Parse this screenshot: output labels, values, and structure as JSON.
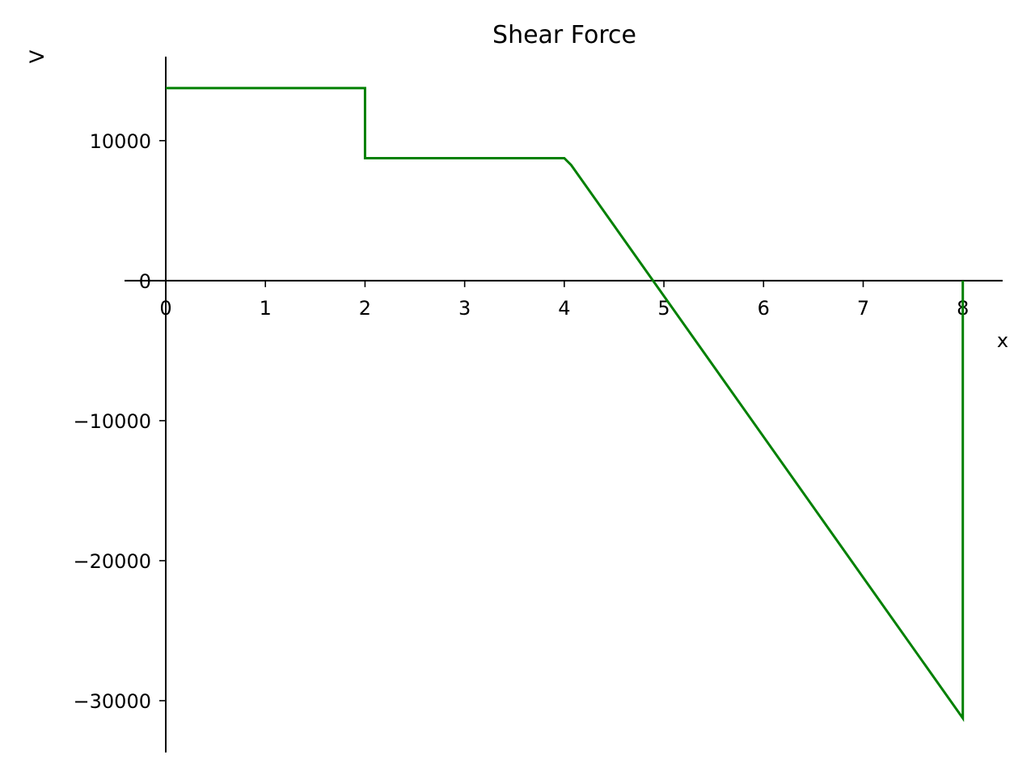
{
  "chart_data": {
    "type": "line",
    "title": "Shear Force",
    "xlabel": "x",
    "ylabel": "V",
    "xlim": [
      0,
      8.4
    ],
    "ylim": [
      -33700,
      16000
    ],
    "x_ticks": [
      {
        "value": 0,
        "label": "0"
      },
      {
        "value": 1,
        "label": "1"
      },
      {
        "value": 2,
        "label": "2"
      },
      {
        "value": 3,
        "label": "3"
      },
      {
        "value": 4,
        "label": "4"
      },
      {
        "value": 5,
        "label": "5"
      },
      {
        "value": 6,
        "label": "6"
      },
      {
        "value": 7,
        "label": "7"
      },
      {
        "value": 8,
        "label": "8"
      }
    ],
    "y_ticks": [
      {
        "value": 10000,
        "label": "10000"
      },
      {
        "value": 0,
        "label": "0"
      },
      {
        "value": -10000,
        "label": "−10000"
      },
      {
        "value": -20000,
        "label": "−20000"
      },
      {
        "value": -30000,
        "label": "−30000"
      }
    ],
    "grid": false,
    "series": [
      {
        "color": "#008000",
        "x": [
          0,
          2,
          2,
          4,
          4.07,
          8,
          8
        ],
        "y": [
          13750,
          13750,
          8750,
          8750,
          8250,
          -31250,
          0
        ]
      }
    ]
  }
}
